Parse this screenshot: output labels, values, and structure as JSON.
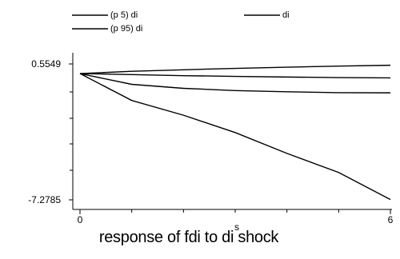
{
  "chart_data": {
    "type": "line",
    "title": "",
    "xlabel": "s",
    "ylabel": "",
    "caption": "response of fdi to di shock",
    "x": [
      0,
      1,
      2,
      3,
      4,
      5,
      6
    ],
    "xlim": [
      0,
      6
    ],
    "ylim": [
      -7.2785,
      0.5549
    ],
    "x_tick_labels": [
      "0",
      "6"
    ],
    "y_tick_labels": [
      "0.5549",
      "-7.2785"
    ],
    "legend_placement": "top",
    "grid": false,
    "series": [
      {
        "name": "(p 5) di",
        "color": "#000000",
        "values": [
          0.0,
          -1.55,
          -2.4,
          -3.4,
          -4.6,
          -5.7,
          -7.26
        ]
      },
      {
        "name": "di",
        "color": "#000000",
        "values": [
          0.0,
          -0.62,
          -0.85,
          -0.98,
          -1.05,
          -1.1,
          -1.11
        ]
      },
      {
        "name": "(p 95) di",
        "color": "#000000",
        "values": [
          0.0,
          0.13,
          0.22,
          0.3,
          0.37,
          0.43,
          0.48
        ]
      }
    ],
    "extra_series": [
      {
        "color": "#000000",
        "values": [
          0.0,
          -0.06,
          -0.12,
          -0.16,
          -0.2,
          -0.23,
          -0.25
        ]
      }
    ]
  }
}
